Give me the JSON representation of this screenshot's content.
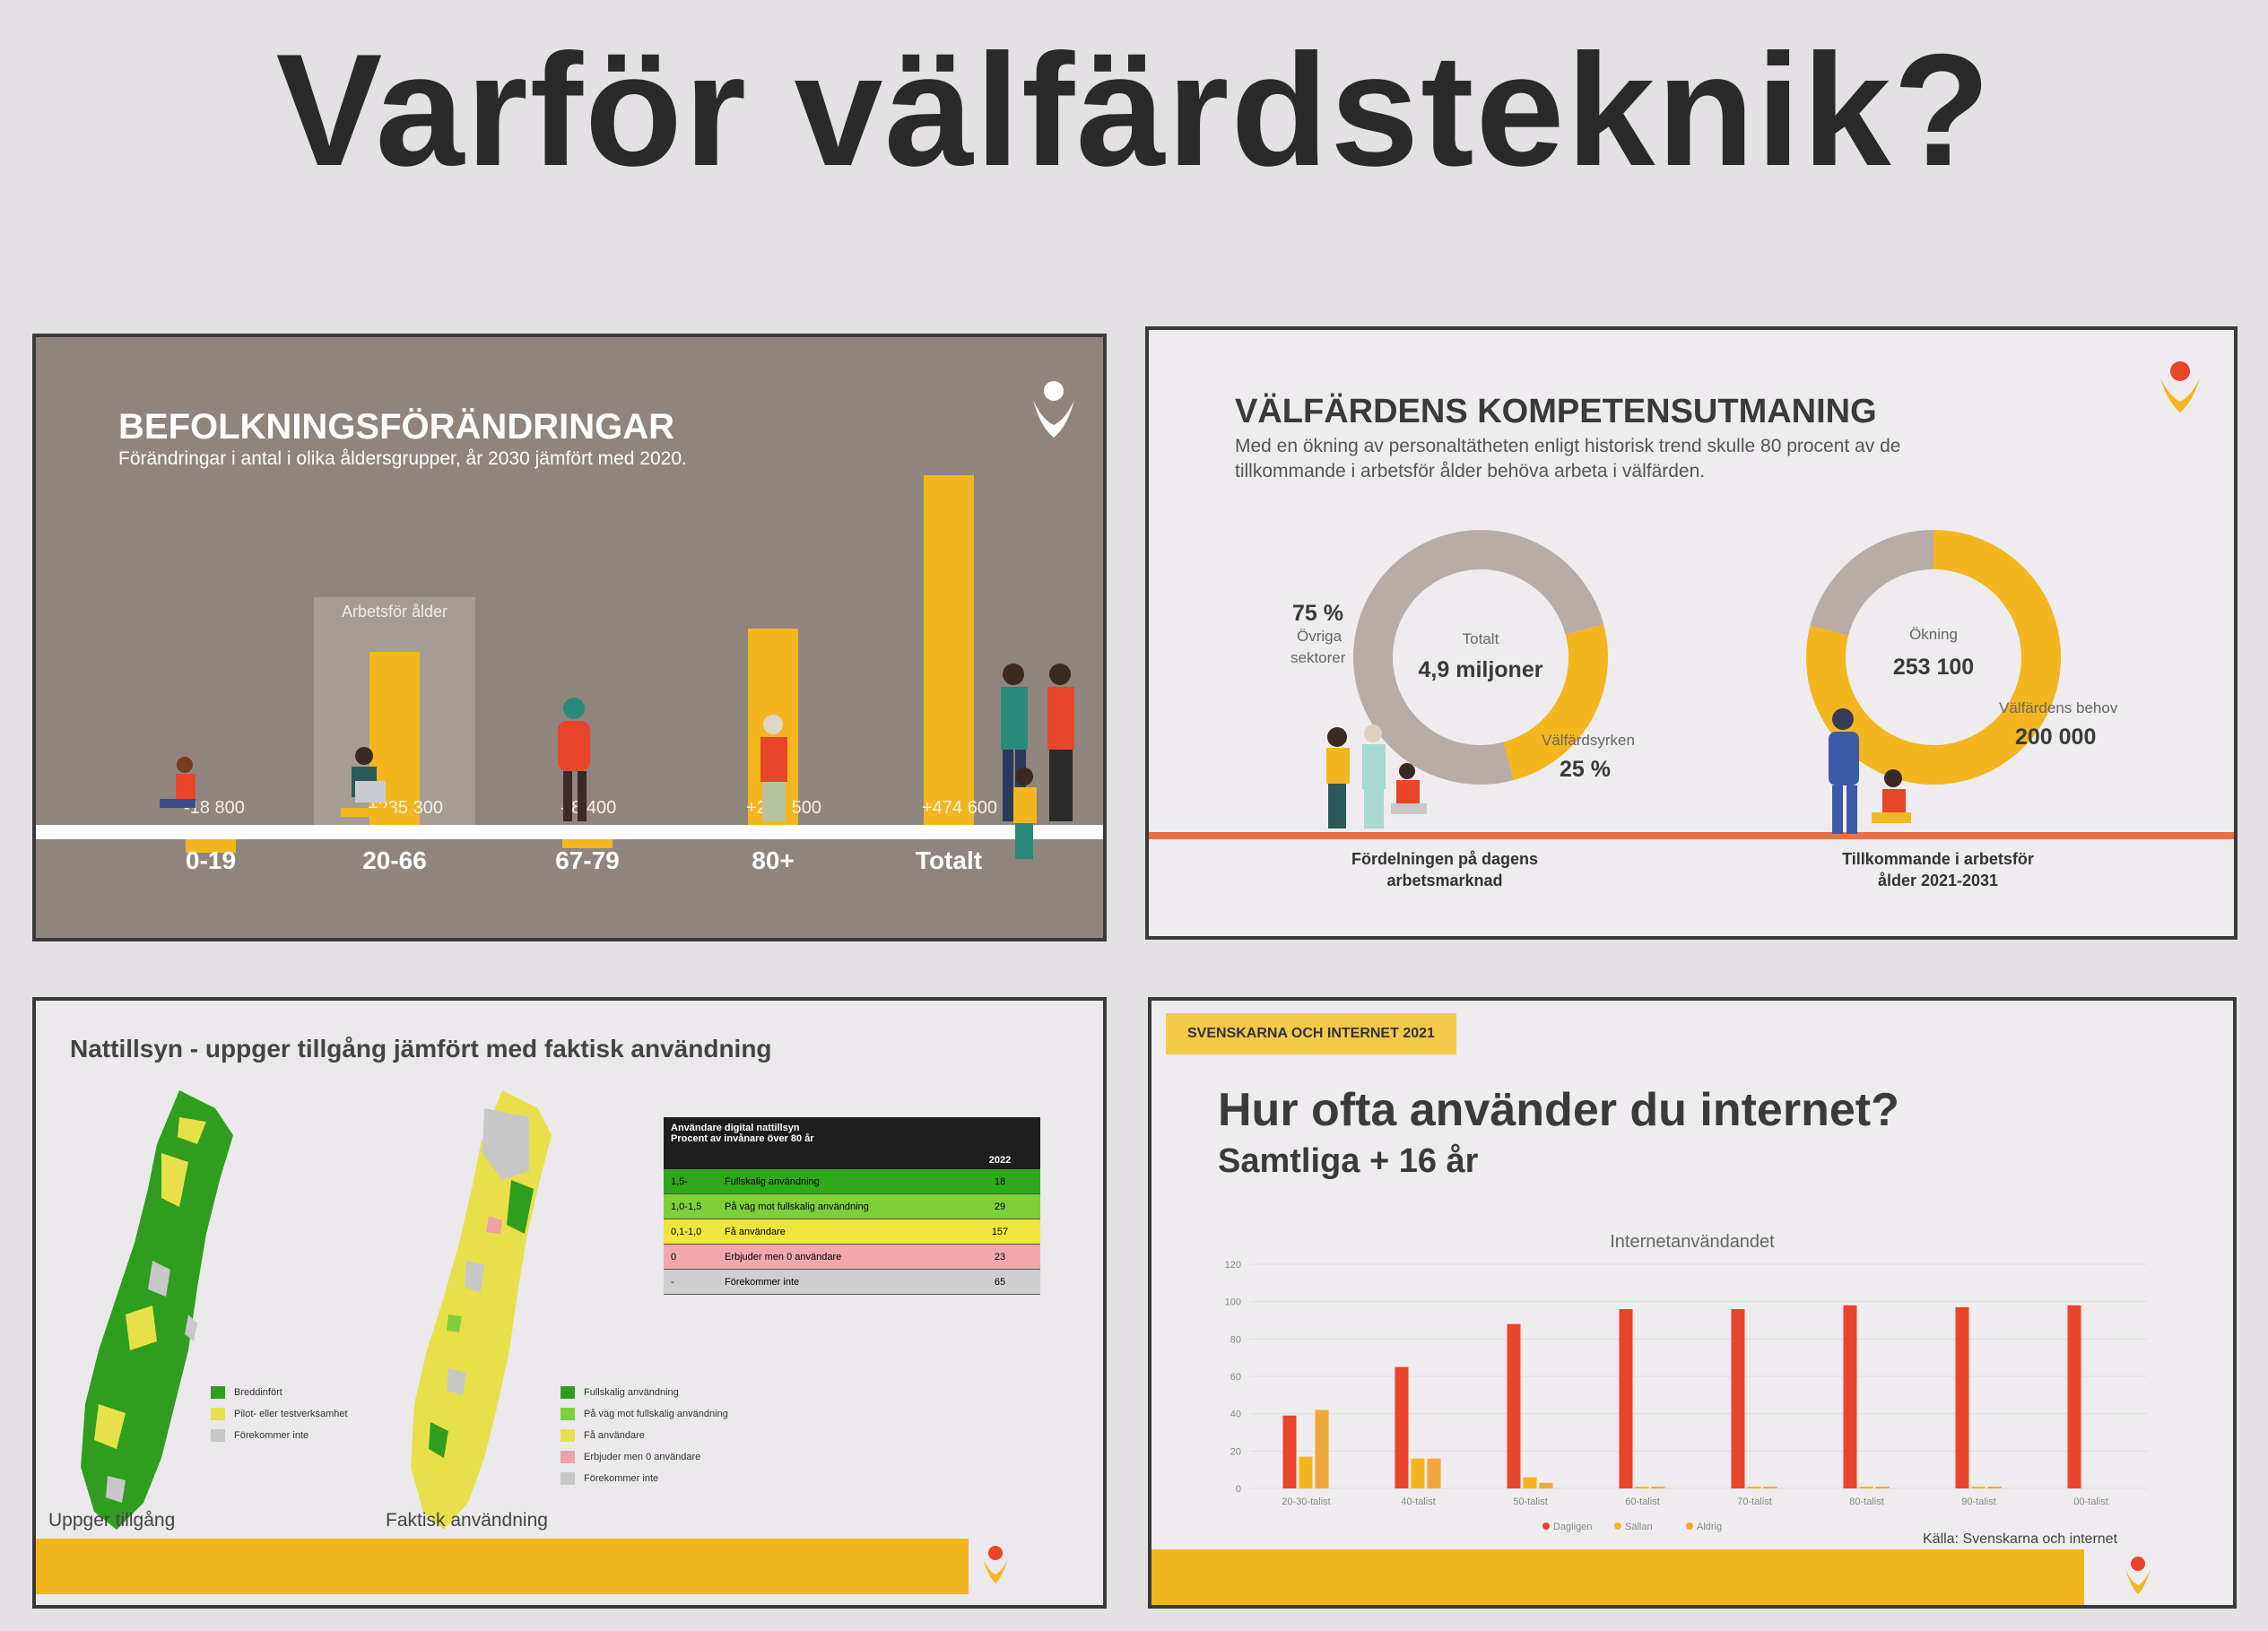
{
  "main_title": "Varför välfärdsteknik?",
  "panel1": {
    "title": "BEFOLKNINGSFÖRÄNDRINGAR",
    "subtitle": "Förändringar i antal i olika åldersgrupper, år 2030 jämfört med 2020.",
    "highlight_label": "Arbetsför ålder",
    "categories": [
      "0-19",
      "20-66",
      "67-79",
      "80+",
      "Totalt"
    ],
    "values": [
      -18800,
      235300,
      -8400,
      266500,
      474600
    ],
    "value_labels": [
      "-18 800",
      "+235 300",
      "- 8 400",
      "+266 500",
      "+474 600"
    ],
    "colors": {
      "background": "#8f857e",
      "bar": "#f3b61f"
    }
  },
  "panel2": {
    "title": "VÄLFÄRDENS KOMPETENSUTMANING",
    "subtitle_line1": "Med en ökning av personaltätheten enligt historisk trend skulle 80 procent av de",
    "subtitle_line2": "tillkommande i arbetsför ålder behöva arbeta i välfärden.",
    "donut1": {
      "center_label": "Totalt",
      "center_value": "4,9 miljoner",
      "segments": [
        {
          "pct_label": "75 %",
          "name_line1": "Övriga",
          "name_line2": "sektorer",
          "share": 0.75,
          "color": "#b7aca6"
        },
        {
          "pct_label": "25 %",
          "name_line1": "Välfärdsyrken",
          "share": 0.25,
          "color": "#f3b61f"
        }
      ],
      "caption_line1": "Fördelningen på dagens",
      "caption_line2": "arbetsmarknad"
    },
    "donut2": {
      "center_label": "Ökning",
      "center_value": "253 100",
      "segments": [
        {
          "name_line1": "Välfärdens behov",
          "value_label": "200 000",
          "share": 0.79,
          "color": "#f3b61f"
        },
        {
          "share": 0.21,
          "color": "#b7aca6"
        }
      ],
      "caption_line1": "Tillkommande i arbetsför",
      "caption_line2": "ålder 2021-2031"
    }
  },
  "panel3": {
    "title": "Nattillsyn - uppger tillgång jämfört med faktisk användning",
    "map1_caption": "Uppger tillgång",
    "map2_caption": "Faktisk användning",
    "legend1": [
      {
        "label": "Breddinfört",
        "color": "#2f9e1e"
      },
      {
        "label": "Pilot- eller testverksamhet",
        "color": "#e8e04a"
      },
      {
        "label": "Förekommer inte",
        "color": "#c8c8c8"
      }
    ],
    "legend2": [
      {
        "label": "Fullskalig användning",
        "color": "#2f9e1e"
      },
      {
        "label": "På väg mot fullskalig användning",
        "color": "#7ed03a"
      },
      {
        "label": "Få användare",
        "color": "#e8e04a"
      },
      {
        "label": "Erbjuder men 0 användare",
        "color": "#f0a0a8"
      },
      {
        "label": "Förekommer inte",
        "color": "#c8c8c8"
      }
    ],
    "table": {
      "header_line1": "Användare digital nattillsyn",
      "header_line2": "Procent av invånare över 80 år",
      "year": "2022",
      "rows": [
        {
          "range": "1,5-",
          "label": "Fullskalig användning",
          "value": "18",
          "color": "#2fa81e"
        },
        {
          "range": "1,0-1,5",
          "label": "På väg mot fullskalig användning",
          "value": "29",
          "color": "#7ed03a"
        },
        {
          "range": "0,1-1,0",
          "label": "Få användare",
          "value": "157",
          "color": "#eee63a"
        },
        {
          "range": "0",
          "label": "Erbjuder men 0 användare",
          "value": "23",
          "color": "#f2a6ae"
        },
        {
          "range": "-",
          "label": "Förekommer inte",
          "value": "65",
          "color": "#cfcfcf"
        }
      ]
    }
  },
  "panel4": {
    "tag": "SVENSKARNA OCH INTERNET 2021",
    "title": "Hur ofta använder du internet?",
    "subtitle": "Samtliga + 16 år",
    "source": "Källa: Svenskarna och internet",
    "chart_data": {
      "type": "bar",
      "title": "Internetanvändandet",
      "categories": [
        "20-30-talist",
        "40-talist",
        "50-talist",
        "60-talist",
        "70-talist",
        "80-talist",
        "90-talist",
        "00-talist"
      ],
      "ylim": [
        0,
        120
      ],
      "yticks": [
        0,
        20,
        40,
        60,
        80,
        100,
        120
      ],
      "series": [
        {
          "name": "Dagligen",
          "values": [
            39,
            65,
            88,
            96,
            96,
            98,
            97,
            98
          ],
          "color": "#e8452a"
        },
        {
          "name": "Sällan",
          "values": [
            17,
            16,
            6,
            1,
            1,
            1,
            1,
            0
          ],
          "color": "#f3b61f"
        },
        {
          "name": "Aldrig",
          "values": [
            42,
            16,
            3,
            1,
            1,
            1,
            1,
            0
          ],
          "color": "#f0a73a"
        }
      ]
    }
  },
  "org_logo_text": "Sveriges Kommuner och Regioner"
}
